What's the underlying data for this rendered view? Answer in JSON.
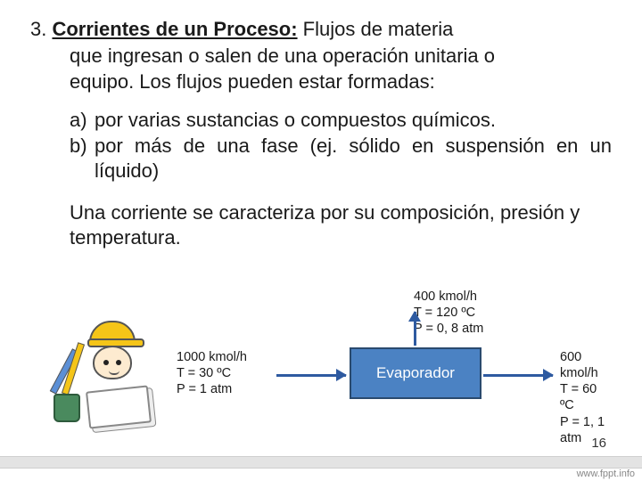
{
  "heading": {
    "number": "3.",
    "title_bold": "Corrientes de un Proceso:",
    "title_rest_line1": " Flujos de materia",
    "line2": "que ingresan o salen de una operación unitaria o",
    "line3": "equipo. Los flujos pueden estar formadas:"
  },
  "list": {
    "a_marker": "a)",
    "a_text": "por varias sustancias o compuestos químicos.",
    "b_marker": "b)",
    "b_text": "por más de una fase (ej. sólido en suspensión en un líquido)"
  },
  "paragraph": "Una corriente se caracteriza por su composición, presión y temperatura.",
  "diagram": {
    "box_label": "Evaporador",
    "box_fill": "#4b82c3",
    "box_border": "#2a4a6e",
    "arrow_color": "#2e5aa0",
    "in": {
      "flow": "1000 kmol/h",
      "T": "T = 30 ºC",
      "P": "P = 1 atm"
    },
    "top": {
      "flow": "400 kmol/h",
      "T": "T = 120 ºC",
      "P": "P = 0, 8 atm"
    },
    "out": {
      "flow": "600 kmol/h",
      "T": "T = 60 ºC",
      "P": "P = 1, 1 atm"
    }
  },
  "page_number": "16",
  "watermark": "www.fppt.info"
}
